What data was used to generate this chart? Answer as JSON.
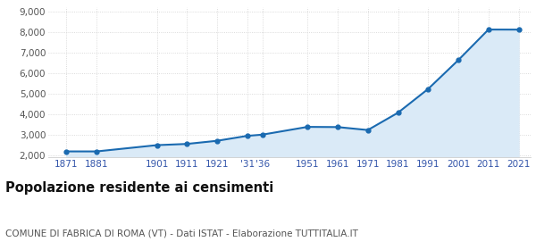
{
  "years": [
    1871,
    1881,
    1901,
    1911,
    1921,
    1931,
    1936,
    1951,
    1961,
    1971,
    1981,
    1991,
    2001,
    2011,
    2021
  ],
  "population": [
    2197,
    2196,
    2501,
    2561,
    2713,
    2953,
    3012,
    3390,
    3381,
    3237,
    4079,
    5236,
    6638,
    8127,
    8124
  ],
  "tick_positions": [
    1871,
    1881,
    1901,
    1911,
    1921,
    1931,
    1936,
    1951,
    1961,
    1971,
    1981,
    1991,
    2001,
    2011,
    2021
  ],
  "tick_labels": [
    "1871",
    "1881",
    "1901",
    "1911",
    "1921",
    "'31",
    "'36",
    "1951",
    "1961",
    "1971",
    "1981",
    "1991",
    "2001",
    "2011",
    "2021"
  ],
  "ylim": [
    1900,
    9200
  ],
  "yticks": [
    2000,
    3000,
    4000,
    5000,
    6000,
    7000,
    8000,
    9000
  ],
  "xlim": [
    1865,
    2025
  ],
  "line_color": "#1a6ab0",
  "fill_color": "#daeaf7",
  "marker_color": "#1a6ab0",
  "grid_color": "#d0d0d0",
  "background_color": "#ffffff",
  "title": "Popolazione residente ai censimenti",
  "subtitle": "COMUNE DI FABRICA DI ROMA (VT) - Dati ISTAT - Elaborazione TUTTITALIA.IT",
  "title_fontsize": 10.5,
  "subtitle_fontsize": 7.5,
  "title_color": "#111111",
  "subtitle_color": "#555555",
  "tick_color": "#3355aa",
  "ytick_color": "#555555"
}
